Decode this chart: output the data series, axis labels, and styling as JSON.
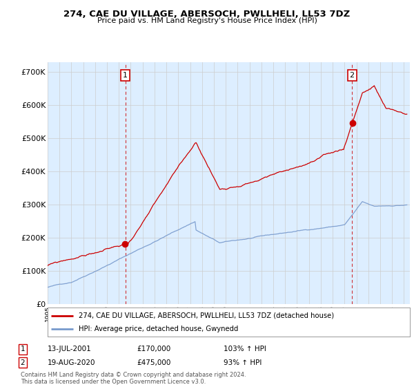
{
  "title": "274, CAE DU VILLAGE, ABERSOCH, PWLLHELI, LL53 7DZ",
  "subtitle": "Price paid vs. HM Land Registry's House Price Index (HPI)",
  "ylabel_ticks": [
    "£0",
    "£100K",
    "£200K",
    "£300K",
    "£400K",
    "£500K",
    "£600K",
    "£700K"
  ],
  "ytick_values": [
    0,
    100000,
    200000,
    300000,
    400000,
    500000,
    600000,
    700000
  ],
  "ylim": [
    0,
    730000
  ],
  "xlim_start": 1995.0,
  "xlim_end": 2025.5,
  "legend_line1": "274, CAE DU VILLAGE, ABERSOCH, PWLLHELI, LL53 7DZ (detached house)",
  "legend_line2": "HPI: Average price, detached house, Gwynedd",
  "red_line_color": "#cc0000",
  "blue_line_color": "#7799cc",
  "chart_bg_color": "#ddeeff",
  "marker1_x": 2001.54,
  "marker1_y": 170000,
  "marker1_label": "1",
  "marker2_x": 2020.63,
  "marker2_y": 475000,
  "marker2_label": "2",
  "table_row1": [
    "1",
    "13-JUL-2001",
    "£170,000",
    "103% ↑ HPI"
  ],
  "table_row2": [
    "2",
    "19-AUG-2020",
    "£475,000",
    "93% ↑ HPI"
  ],
  "footer": "Contains HM Land Registry data © Crown copyright and database right 2024.\nThis data is licensed under the Open Government Licence v3.0.",
  "background_color": "#ffffff",
  "grid_color": "#cccccc"
}
